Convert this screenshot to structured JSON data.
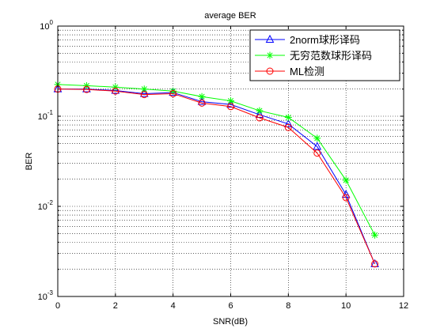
{
  "chart_data": {
    "type": "line",
    "title": "average BER",
    "xlabel": "SNR(dB)",
    "ylabel": "BER",
    "xlim": [
      0,
      12
    ],
    "ylim": [
      0.001,
      1
    ],
    "yscale": "log",
    "grid": true,
    "legend_position": "top-right",
    "x_ticks": [
      "0",
      "2",
      "4",
      "6",
      "8",
      "10",
      "12"
    ],
    "y_ticks": [
      {
        "base": "10",
        "exp": "0"
      },
      {
        "base": "10",
        "exp": "-1"
      },
      {
        "base": "10",
        "exp": "-2"
      },
      {
        "base": "10",
        "exp": "-3"
      }
    ],
    "x": [
      0,
      1,
      2,
      3,
      4,
      5,
      6,
      7,
      8,
      9,
      10,
      11
    ],
    "series": [
      {
        "name": "2norm球形译码",
        "marker": "triangle",
        "color": "#0000ff",
        "values": [
          0.2,
          0.2,
          0.193,
          0.178,
          0.183,
          0.145,
          0.135,
          0.104,
          0.082,
          0.046,
          0.0135,
          0.0023
        ]
      },
      {
        "name": "无穷范数球形译码",
        "marker": "asterisk",
        "color": "#00ff00",
        "values": [
          0.225,
          0.218,
          0.21,
          0.2,
          0.19,
          0.165,
          0.148,
          0.115,
          0.097,
          0.057,
          0.0195,
          0.0048
        ]
      },
      {
        "name": "ML检测",
        "marker": "circle",
        "color": "#ff0000",
        "values": [
          0.2,
          0.198,
          0.19,
          0.174,
          0.178,
          0.14,
          0.128,
          0.096,
          0.075,
          0.039,
          0.0125,
          0.0023
        ]
      }
    ]
  }
}
